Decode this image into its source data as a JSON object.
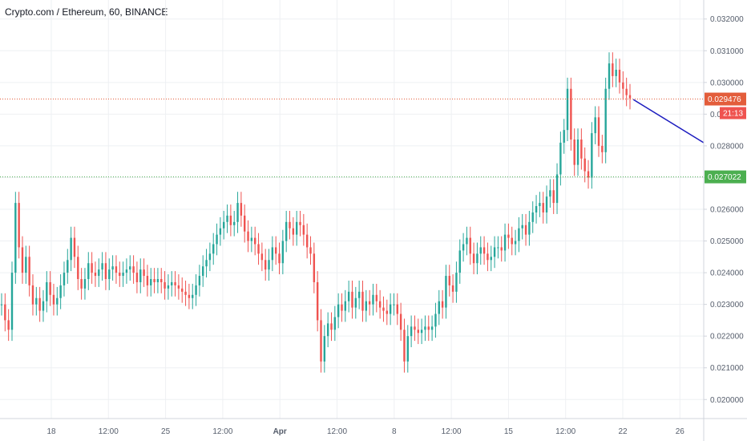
{
  "header": {
    "title": "Crypto.com / Ethereum, 60, BINANCE"
  },
  "colors": {
    "up": "#26a69a",
    "down": "#ef5350",
    "resistance": "#e35d3b",
    "support": "#4caf50",
    "trend": "#1c1cbf",
    "grid": "#eef0f3",
    "axis": "#d1d4dc"
  },
  "chart_data": {
    "type": "line",
    "title": "",
    "ylim": [
      0.0194,
      0.0326
    ],
    "y_ticks": [
      "0.032000",
      "0.031000",
      "0.030000",
      "0.029000",
      "0.028000",
      "0.027000",
      "0.026000",
      "0.025000",
      "0.024000",
      "0.023000",
      "0.022000",
      "0.021000",
      "0.020000"
    ],
    "x_ticks": [
      "18",
      "12:00",
      "25",
      "12:00",
      "Apr",
      "12:00",
      "8",
      "12:00",
      "15",
      "12:00",
      "22",
      "26"
    ],
    "series": [
      {
        "values": [
          0.023,
          0.0225,
          0.0222,
          0.024,
          0.0262,
          0.0248,
          0.024,
          0.0245,
          0.0236,
          0.023,
          0.0232,
          0.0228,
          0.0231,
          0.0237,
          0.0233,
          0.023,
          0.0232,
          0.0236,
          0.024,
          0.0244,
          0.0251,
          0.0245,
          0.0238,
          0.0235,
          0.0238,
          0.0243,
          0.024,
          0.0239,
          0.0241,
          0.0243,
          0.0238,
          0.0241,
          0.0242,
          0.024,
          0.0239,
          0.024,
          0.0241,
          0.0242,
          0.024,
          0.0237,
          0.0241,
          0.0239,
          0.0236,
          0.0238,
          0.0237,
          0.0238,
          0.0237,
          0.0235,
          0.0236,
          0.0237,
          0.0236,
          0.0235,
          0.0234,
          0.0233,
          0.0232,
          0.0233,
          0.0236,
          0.0239,
          0.0242,
          0.0244,
          0.0246,
          0.0249,
          0.0252,
          0.0254,
          0.0256,
          0.0258,
          0.0255,
          0.0256,
          0.0262,
          0.0258,
          0.0253,
          0.025,
          0.0251,
          0.0249,
          0.0246,
          0.0244,
          0.0241,
          0.0244,
          0.0248,
          0.0246,
          0.0243,
          0.025,
          0.0256,
          0.0254,
          0.0252,
          0.0256,
          0.0255,
          0.0252,
          0.0248,
          0.0246,
          0.0237,
          0.0225,
          0.0212,
          0.022,
          0.0224,
          0.0222,
          0.0226,
          0.023,
          0.0228,
          0.0231,
          0.0234,
          0.0229,
          0.0232,
          0.0234,
          0.0228,
          0.0231,
          0.023,
          0.0233,
          0.0231,
          0.0229,
          0.0228,
          0.0227,
          0.023,
          0.023,
          0.0227,
          0.0222,
          0.0212,
          0.022,
          0.0223,
          0.0222,
          0.0221,
          0.0222,
          0.0223,
          0.0222,
          0.0223,
          0.0227,
          0.0231,
          0.0229,
          0.0239,
          0.0236,
          0.0234,
          0.024,
          0.0247,
          0.0249,
          0.0251,
          0.0246,
          0.0243,
          0.0246,
          0.0248,
          0.0246,
          0.0244,
          0.0245,
          0.0248,
          0.0248,
          0.0247,
          0.0252,
          0.0251,
          0.0249,
          0.025,
          0.0254,
          0.0255,
          0.0252,
          0.0256,
          0.0259,
          0.0261,
          0.0262,
          0.0259,
          0.0264,
          0.0266,
          0.0262,
          0.0271,
          0.0281,
          0.0285,
          0.0298,
          0.0282,
          0.0274,
          0.0282,
          0.0276,
          0.0272,
          0.027,
          0.0284,
          0.0289,
          0.028,
          0.0278,
          0.0298,
          0.0306,
          0.0302,
          0.0304,
          0.03,
          0.0298,
          0.0296,
          0.0295
        ]
      }
    ],
    "price_lines": [
      {
        "name": "resistance",
        "value": 0.029476,
        "label": "0.029476",
        "badge": "21:13"
      },
      {
        "name": "support",
        "value": 0.027022,
        "label": "0.027022"
      }
    ],
    "trend_line": {
      "from": [
        0.9,
        0.02946
      ],
      "to": [
        1.0,
        0.0281
      ]
    }
  }
}
